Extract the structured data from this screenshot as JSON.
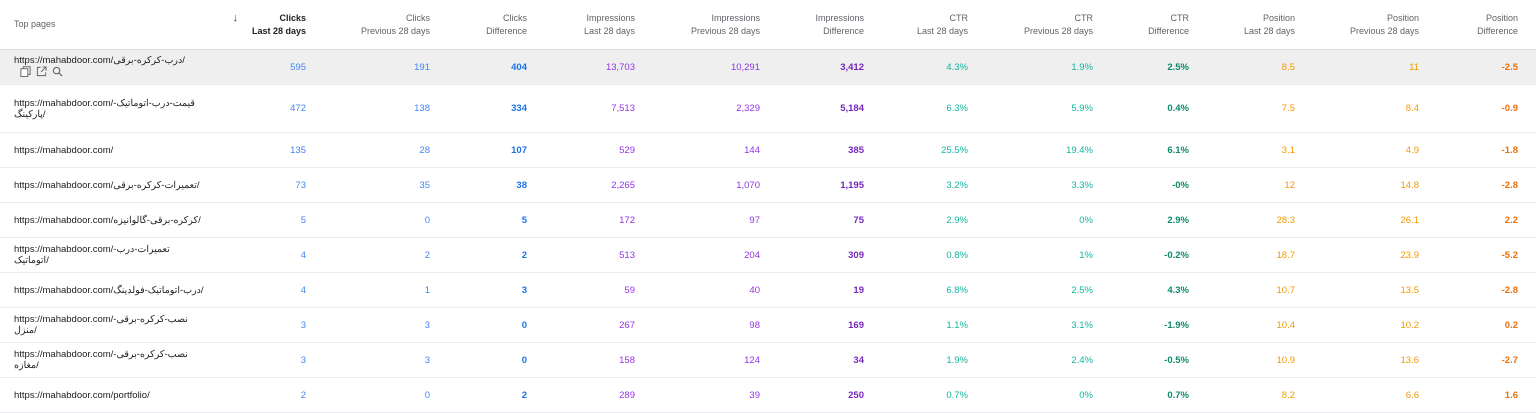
{
  "table": {
    "headers": [
      {
        "l1": "Top pages",
        "l2": ""
      },
      {
        "l1": "Clicks",
        "l2": "Last 28 days"
      },
      {
        "l1": "Clicks",
        "l2": "Previous 28 days"
      },
      {
        "l1": "Clicks",
        "l2": "Difference"
      },
      {
        "l1": "Impressions",
        "l2": "Last 28 days"
      },
      {
        "l1": "Impressions",
        "l2": "Previous 28 days"
      },
      {
        "l1": "Impressions",
        "l2": "Difference"
      },
      {
        "l1": "CTR",
        "l2": "Last 28 days"
      },
      {
        "l1": "CTR",
        "l2": "Previous 28 days"
      },
      {
        "l1": "CTR",
        "l2": "Difference"
      },
      {
        "l1": "Position",
        "l2": "Last 28 days"
      },
      {
        "l1": "Position",
        "l2": "Previous 28 days"
      },
      {
        "l1": "Position",
        "l2": "Difference"
      }
    ],
    "sort_icon": "arrow-down-icon",
    "row_icons": [
      "copy-icon",
      "open-in-new-icon",
      "search-icon"
    ],
    "rows": [
      {
        "url": "https://mahabdoor.com/درب-کرکره-برقی/",
        "clicks": "595",
        "clicks_prev": "191",
        "clicks_diff": "404",
        "impr": "13,703",
        "impr_prev": "10,291",
        "impr_diff": "3,412",
        "ctr": "4.3%",
        "ctr_prev": "1.9%",
        "ctr_diff": "2.5%",
        "pos": "8.5",
        "pos_prev": "11",
        "pos_diff": "-2.5"
      },
      {
        "url": "https://mahabdoor.com/قیمت-درب-اتوماتیک-پارکینگ/",
        "clicks": "472",
        "clicks_prev": "138",
        "clicks_diff": "334",
        "impr": "7,513",
        "impr_prev": "2,329",
        "impr_diff": "5,184",
        "ctr": "6.3%",
        "ctr_prev": "5.9%",
        "ctr_diff": "0.4%",
        "pos": "7.5",
        "pos_prev": "8.4",
        "pos_diff": "-0.9"
      },
      {
        "url": "https://mahabdoor.com/",
        "clicks": "135",
        "clicks_prev": "28",
        "clicks_diff": "107",
        "impr": "529",
        "impr_prev": "144",
        "impr_diff": "385",
        "ctr": "25.5%",
        "ctr_prev": "19.4%",
        "ctr_diff": "6.1%",
        "pos": "3.1",
        "pos_prev": "4.9",
        "pos_diff": "-1.8"
      },
      {
        "url": "https://mahabdoor.com/تعمیرات-کرکره-برقی/",
        "clicks": "73",
        "clicks_prev": "35",
        "clicks_diff": "38",
        "impr": "2,265",
        "impr_prev": "1,070",
        "impr_diff": "1,195",
        "ctr": "3.2%",
        "ctr_prev": "3.3%",
        "ctr_diff": "-0%",
        "pos": "12",
        "pos_prev": "14.8",
        "pos_diff": "-2.8"
      },
      {
        "url": "https://mahabdoor.com/کرکره-برقی-گالوانیزه/",
        "clicks": "5",
        "clicks_prev": "0",
        "clicks_diff": "5",
        "impr": "172",
        "impr_prev": "97",
        "impr_diff": "75",
        "ctr": "2.9%",
        "ctr_prev": "0%",
        "ctr_diff": "2.9%",
        "pos": "28.3",
        "pos_prev": "26.1",
        "pos_diff": "2.2"
      },
      {
        "url": "https://mahabdoor.com/تعمیرات-درب-اتوماتیک/",
        "clicks": "4",
        "clicks_prev": "2",
        "clicks_diff": "2",
        "impr": "513",
        "impr_prev": "204",
        "impr_diff": "309",
        "ctr": "0.8%",
        "ctr_prev": "1%",
        "ctr_diff": "-0.2%",
        "pos": "18.7",
        "pos_prev": "23.9",
        "pos_diff": "-5.2"
      },
      {
        "url": "https://mahabdoor.com/درب-اتوماتیک-فولدینگ/",
        "clicks": "4",
        "clicks_prev": "1",
        "clicks_diff": "3",
        "impr": "59",
        "impr_prev": "40",
        "impr_diff": "19",
        "ctr": "6.8%",
        "ctr_prev": "2.5%",
        "ctr_diff": "4.3%",
        "pos": "10.7",
        "pos_prev": "13.5",
        "pos_diff": "-2.8"
      },
      {
        "url": "https://mahabdoor.com/نصب-کرکره-برقی-منزل/",
        "clicks": "3",
        "clicks_prev": "3",
        "clicks_diff": "0",
        "impr": "267",
        "impr_prev": "98",
        "impr_diff": "169",
        "ctr": "1.1%",
        "ctr_prev": "3.1%",
        "ctr_diff": "-1.9%",
        "pos": "10.4",
        "pos_prev": "10.2",
        "pos_diff": "0.2"
      },
      {
        "url": "https://mahabdoor.com/نصب-کرکره-برقی-مغازه/",
        "clicks": "3",
        "clicks_prev": "3",
        "clicks_diff": "0",
        "impr": "158",
        "impr_prev": "124",
        "impr_diff": "34",
        "ctr": "1.9%",
        "ctr_prev": "2.4%",
        "ctr_diff": "-0.5%",
        "pos": "10.9",
        "pos_prev": "13.6",
        "pos_diff": "-2.7"
      },
      {
        "url": "https://mahabdoor.com/portfolio/",
        "clicks": "2",
        "clicks_prev": "0",
        "clicks_diff": "2",
        "impr": "289",
        "impr_prev": "39",
        "impr_diff": "250",
        "ctr": "0.7%",
        "ctr_prev": "0%",
        "ctr_diff": "0.7%",
        "pos": "8.2",
        "pos_prev": "6.6",
        "pos_diff": "1.6"
      }
    ]
  }
}
